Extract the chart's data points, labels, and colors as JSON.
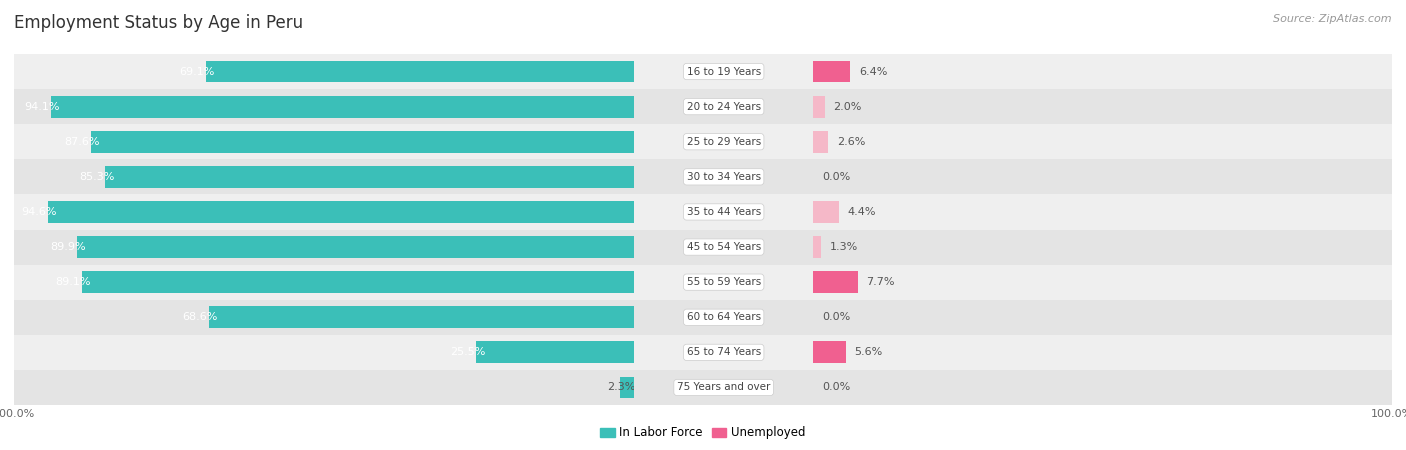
{
  "title": "Employment Status by Age in Peru",
  "source": "Source: ZipAtlas.com",
  "categories": [
    "16 to 19 Years",
    "20 to 24 Years",
    "25 to 29 Years",
    "30 to 34 Years",
    "35 to 44 Years",
    "45 to 54 Years",
    "55 to 59 Years",
    "60 to 64 Years",
    "65 to 74 Years",
    "75 Years and over"
  ],
  "labor_force": [
    69.1,
    94.1,
    87.6,
    85.3,
    94.6,
    89.9,
    89.1,
    68.6,
    25.5,
    2.3
  ],
  "unemployed": [
    6.4,
    2.0,
    2.6,
    0.0,
    4.4,
    1.3,
    7.7,
    0.0,
    5.6,
    0.0
  ],
  "labor_color": "#3bbfb8",
  "unemployed_color_high": "#f06090",
  "unemployed_color_low": "#f5b8c8",
  "row_bg_even": "#efefef",
  "row_bg_odd": "#e4e4e4",
  "label_inside_color": "#ffffff",
  "label_outside_color": "#555555",
  "center_label_color": "#444444",
  "max_val": 100.0,
  "figsize": [
    14.06,
    4.5
  ],
  "dpi": 100,
  "title_fontsize": 12,
  "bar_label_fontsize": 8,
  "axis_label_fontsize": 8,
  "legend_fontsize": 8.5,
  "source_fontsize": 8
}
